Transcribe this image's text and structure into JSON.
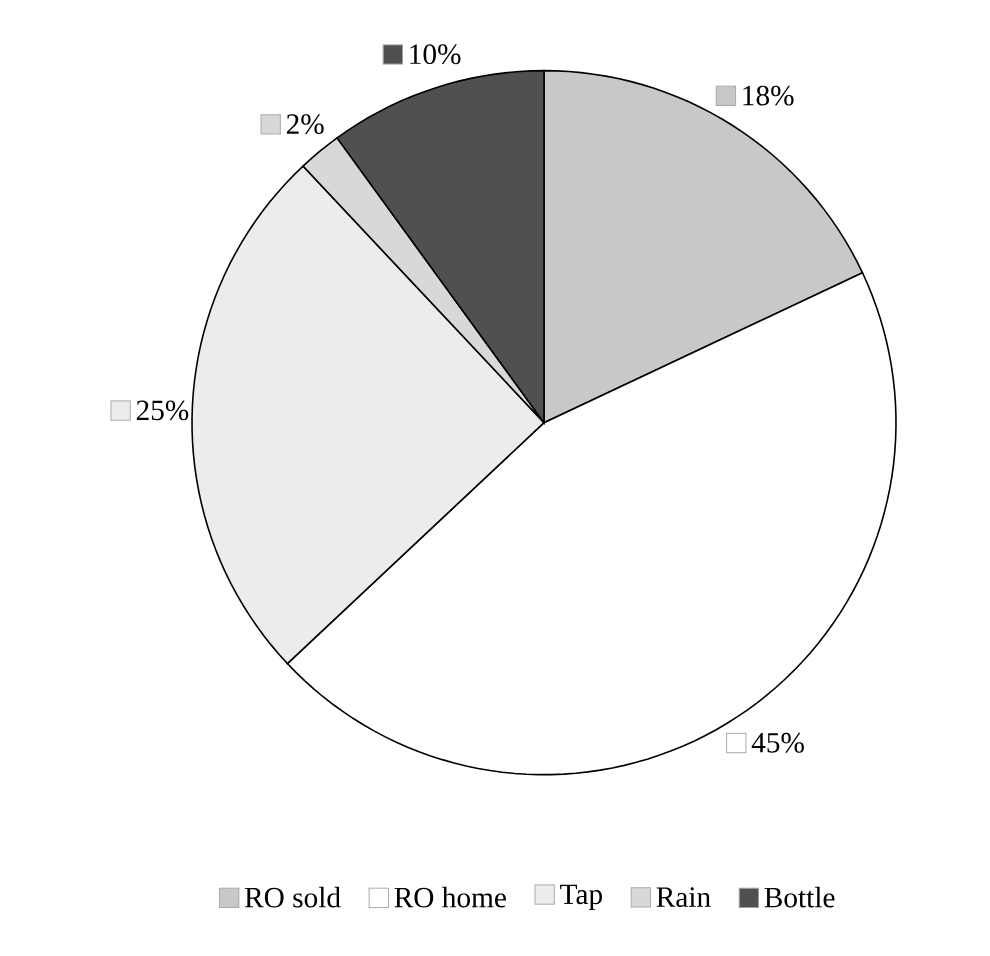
{
  "chart_data": {
    "type": "pie",
    "categories": [
      "RO sold",
      "RO home",
      "Tap",
      "Rain",
      "Bottle"
    ],
    "values": [
      18,
      45,
      25,
      2,
      10
    ],
    "value_labels": [
      "18%",
      "45%",
      "25%",
      "2%",
      "10%"
    ],
    "colors": [
      "#c8c8c8",
      "#ffffff",
      "#ececec",
      "#d8d8d8",
      "#505050"
    ],
    "legend": "bottom"
  }
}
